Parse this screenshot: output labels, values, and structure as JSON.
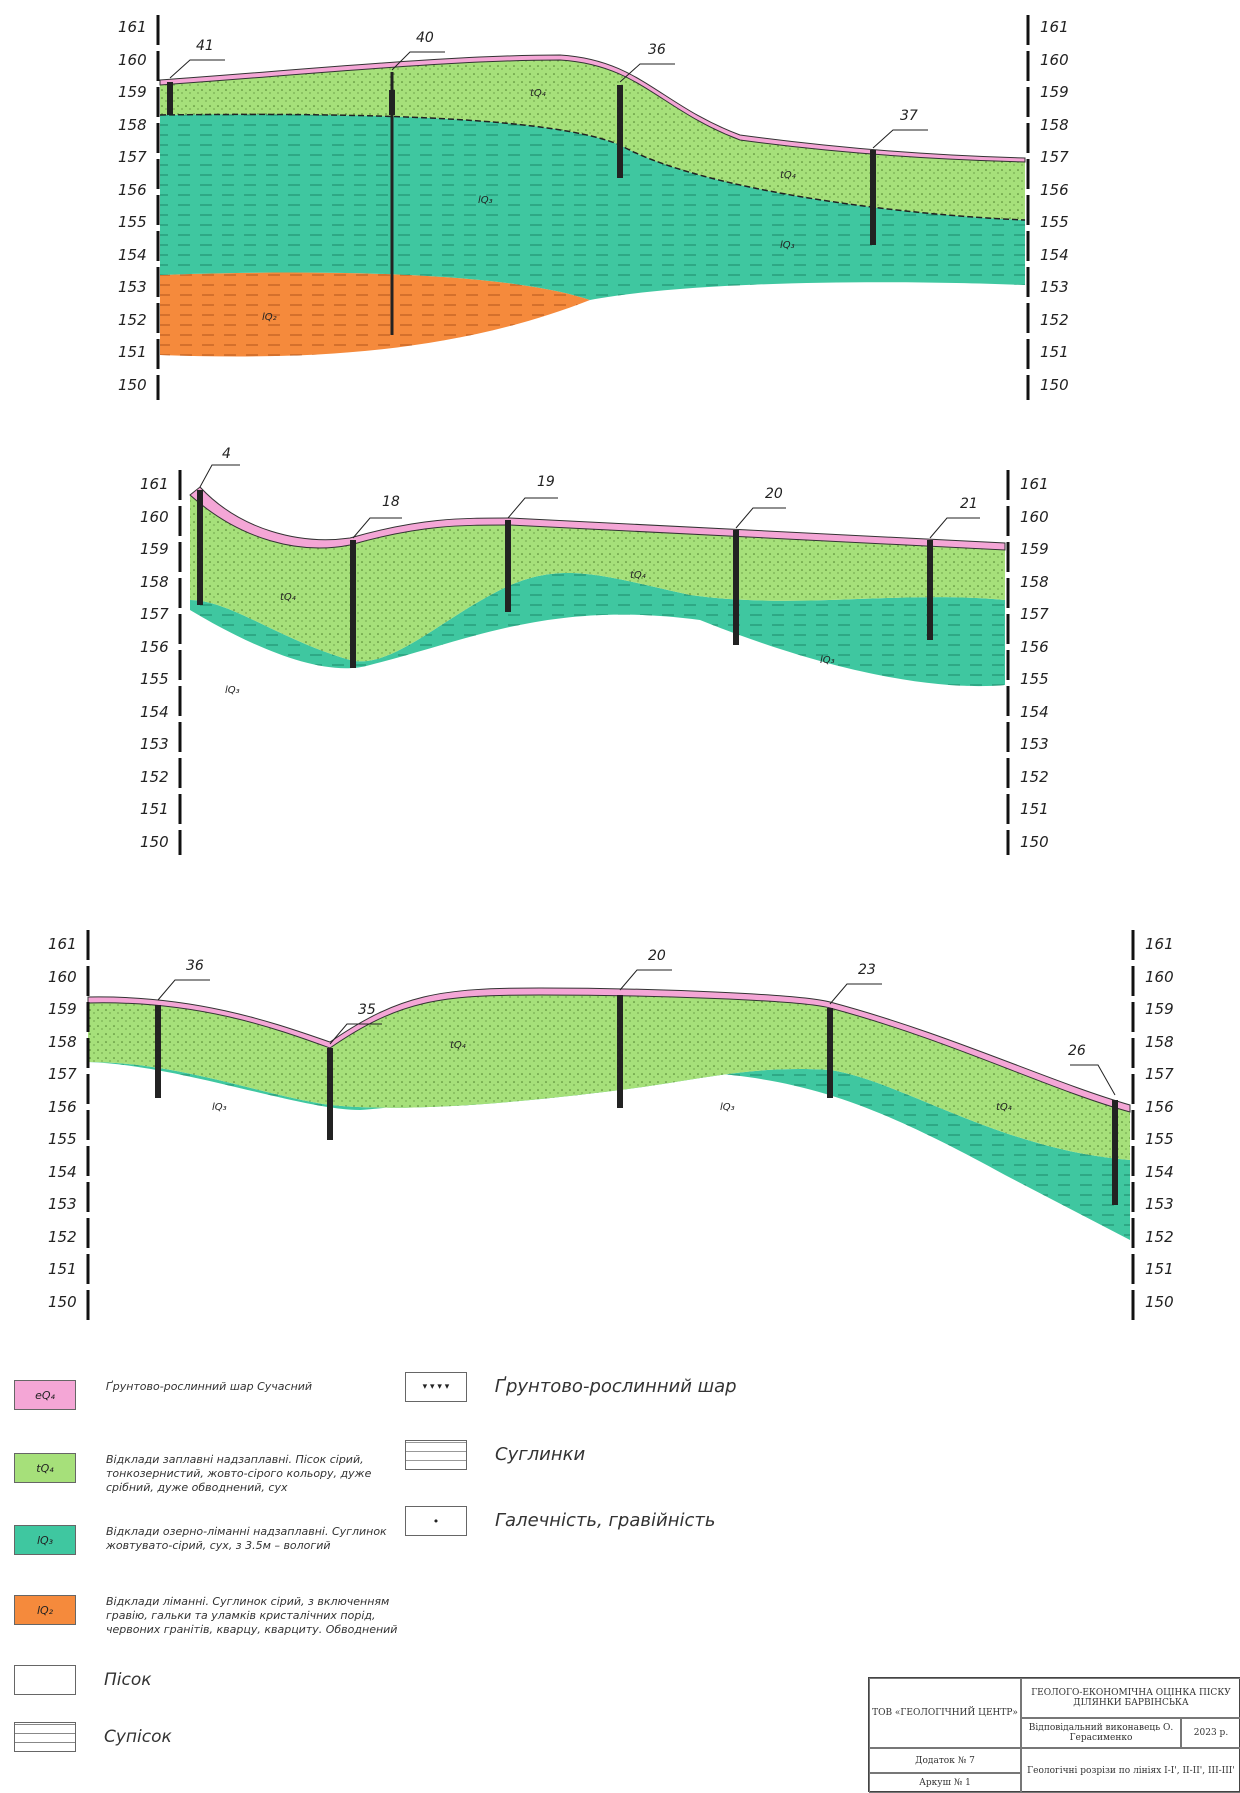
{
  "sections": [
    {
      "id": "section-1",
      "scale_left": [
        "161",
        "160",
        "159",
        "158",
        "157",
        "156",
        "155",
        "154",
        "153",
        "152",
        "151",
        "150"
      ],
      "scale_right": [
        "161",
        "160",
        "159",
        "158",
        "157",
        "156",
        "155",
        "154",
        "153",
        "152",
        "151",
        "150"
      ],
      "wells": [
        "41",
        "40",
        "36",
        "37"
      ],
      "layer_labels": [
        "tQ₄",
        "tQ₄",
        "lQ₃",
        "lQ₃",
        "lQ₂"
      ]
    },
    {
      "id": "section-2",
      "scale_left": [
        "161",
        "160",
        "159",
        "158",
        "157",
        "156",
        "155",
        "154",
        "153",
        "152",
        "151",
        "150"
      ],
      "scale_right": [
        "161",
        "160",
        "159",
        "158",
        "157",
        "156",
        "155",
        "154",
        "153",
        "152",
        "151",
        "150"
      ],
      "wells": [
        "4",
        "18",
        "19",
        "20",
        "21"
      ],
      "layer_labels": [
        "tQ₄",
        "tQ₄",
        "lQ₃",
        "lQ₃"
      ]
    },
    {
      "id": "section-3",
      "scale_left": [
        "161",
        "160",
        "159",
        "158",
        "157",
        "156",
        "155",
        "154",
        "153",
        "152",
        "151",
        "150"
      ],
      "scale_right": [
        "161",
        "160",
        "159",
        "158",
        "157",
        "156",
        "155",
        "154",
        "153",
        "152",
        "151",
        "150"
      ],
      "wells": [
        "36",
        "35",
        "20",
        "23",
        "26"
      ],
      "layer_labels": [
        "tQ₄",
        "tQ₄",
        "lQ₃",
        "lQ₃"
      ]
    }
  ],
  "legend": {
    "items": [
      {
        "swatch": "eQ₄",
        "color": "#f4a6d6",
        "text": "Ґрунтово-рослинний шар Сучасний"
      },
      {
        "swatch": "tQ₄",
        "color": "#a6e07a",
        "text": "Відклади заплавні надзаплавні. Пісок сірий, тонкозернистий, жовто-сірого кольору, дуже срібний, дуже обводнений, сух"
      },
      {
        "swatch": "lQ₃",
        "color": "#3fc7a0",
        "text": "Відклади озерно-ліманні надзаплавні. Суглинок жовтувато-сірий, сух, з 3.5м – вологий"
      },
      {
        "swatch": "lQ₂",
        "color": "#f58a3c",
        "text": "Відклади ліманні. Суглинок сірий, з включенням гравію, гальки та уламків кристалічних порід, червоних гранітів, кварцу, кварциту. Обводнений"
      },
      {
        "swatch": "",
        "color": "#ffffff",
        "text": "Пісок"
      },
      {
        "swatch": "",
        "color": "#ffffff",
        "text": "Супісок"
      }
    ],
    "items_right": [
      {
        "text": "Ґрунтово-рослинний шар"
      },
      {
        "text": "Суглинки"
      },
      {
        "text": "Галечність, гравійність"
      }
    ]
  },
  "stamp": {
    "org": "ТОВ «ГЕОЛОГІЧНИЙ ЦЕНТР»",
    "title": "ГЕОЛОГО-ЕКОНОМІЧНА ОЦІНКА ПІСКУ ДІЛЯНКИ БАРВІНСЬКА",
    "author": "Відповідальний виконавець О. Герасименко",
    "year": "2023 р.",
    "appendix": "Додаток № 7",
    "sheet": "Аркуш № 1",
    "drawing": "Геологічні розрізи по лініях I-I', II-II', III-III'"
  }
}
